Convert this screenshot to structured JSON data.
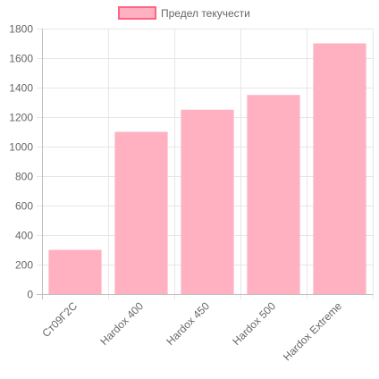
{
  "chart_data": {
    "type": "bar",
    "categories": [
      "Ст09Г2С",
      "Hardox 400",
      "Hardox 450",
      "Hardox 500",
      "Hardox Extreme"
    ],
    "series": [
      {
        "name": "Предел текучести",
        "values": [
          300,
          1100,
          1250,
          1350,
          1700
        ],
        "fill": "#ffb0c1",
        "stroke": "#ff6384"
      }
    ],
    "ylim": [
      0,
      1800
    ],
    "yticks": [
      "0",
      "200",
      "400",
      "600",
      "800",
      "1000",
      "1200",
      "1400",
      "1600",
      "1800"
    ],
    "grid": true,
    "legend_position": "top",
    "colors": {
      "grid": "#e6e6e6",
      "axis": "#bfbfbf",
      "text": "#666666"
    }
  }
}
